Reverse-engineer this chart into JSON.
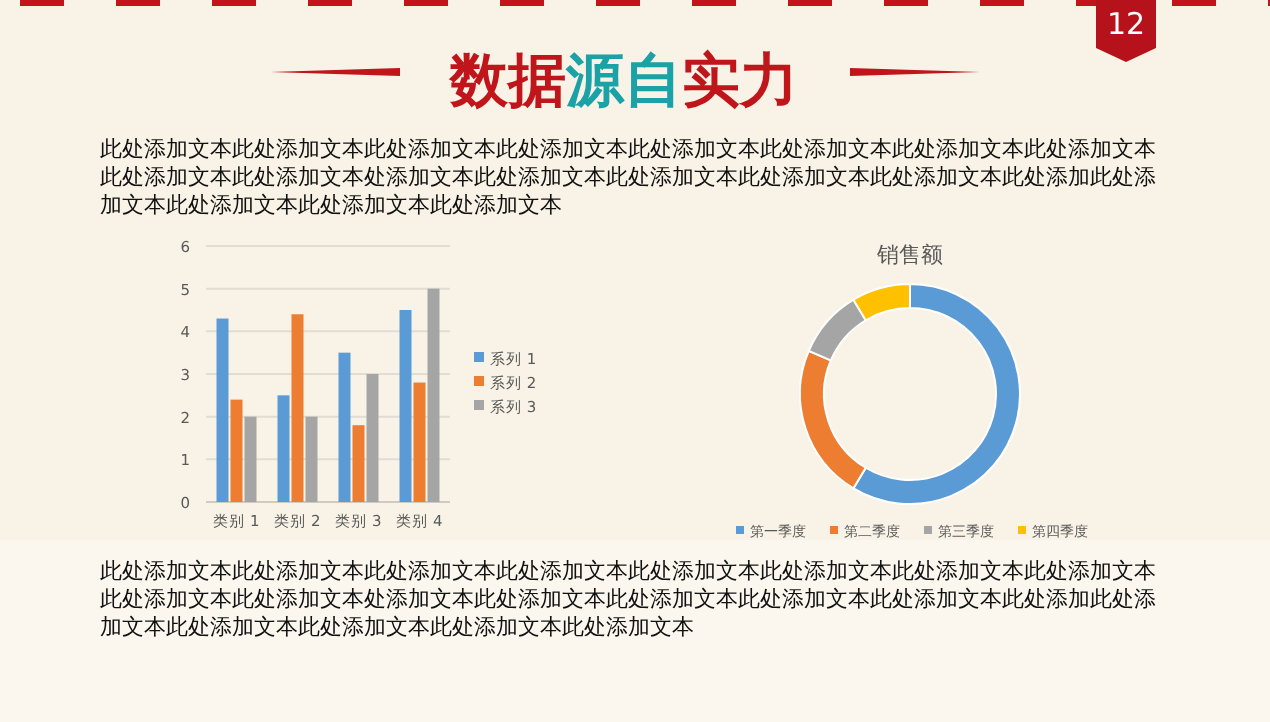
{
  "chart_data": [
    {
      "type": "bar",
      "title": "数据源自实力",
      "categories": [
        "类别 1",
        "类别 2",
        "类别 3",
        "类别 4"
      ],
      "series": [
        {
          "name": "系列 1",
          "color": "#5b9bd5",
          "values": [
            4.3,
            2.5,
            3.5,
            4.5
          ]
        },
        {
          "name": "系列 2",
          "color": "#ed7d31",
          "values": [
            2.4,
            4.4,
            1.8,
            2.8
          ]
        },
        {
          "name": "系列 3",
          "color": "#a5a5a5",
          "values": [
            2,
            2,
            3,
            5
          ]
        }
      ],
      "ylim": [
        0,
        6
      ],
      "yticks": [
        0,
        1,
        2,
        3,
        4,
        5,
        6
      ],
      "grid": "y",
      "legend": "right",
      "annotations": [
        "此处添加文本此处添加文本此处添加文本此处添加文本此处添加文本此处添加文本此处添加文本此处添加文本此处添加文本此处添加文本处添加文本此处添加文本此处添加文本此处添加文本此处添加文本此处添加此处添加文本此处添加文本此处添加文本此处添加文本",
        "12"
      ]
    },
    {
      "type": "donut",
      "title": "销售额",
      "categories": [
        "第一季度",
        "第二季度",
        "第三季度",
        "第四季度"
      ],
      "values": [
        58.6,
        22.8,
        10,
        8.6
      ],
      "colors": [
        "#5b9bd5",
        "#ed7d31",
        "#a5a5a5",
        "#ffc000"
      ],
      "legend": "bottom",
      "annotations": [
        "此处添加文本此处添加文本此处添加文本此处添加文本此处添加文本此处添加文本此处添加文本此处添加文本此处添加文本此处添加文本处添加文本此处添加文本此处添加文本此处添加文本此处添加文本此处添加此处添加文本此处添加文本此处添加文本此处添加文本此处添加文本"
      ]
    }
  ]
}
